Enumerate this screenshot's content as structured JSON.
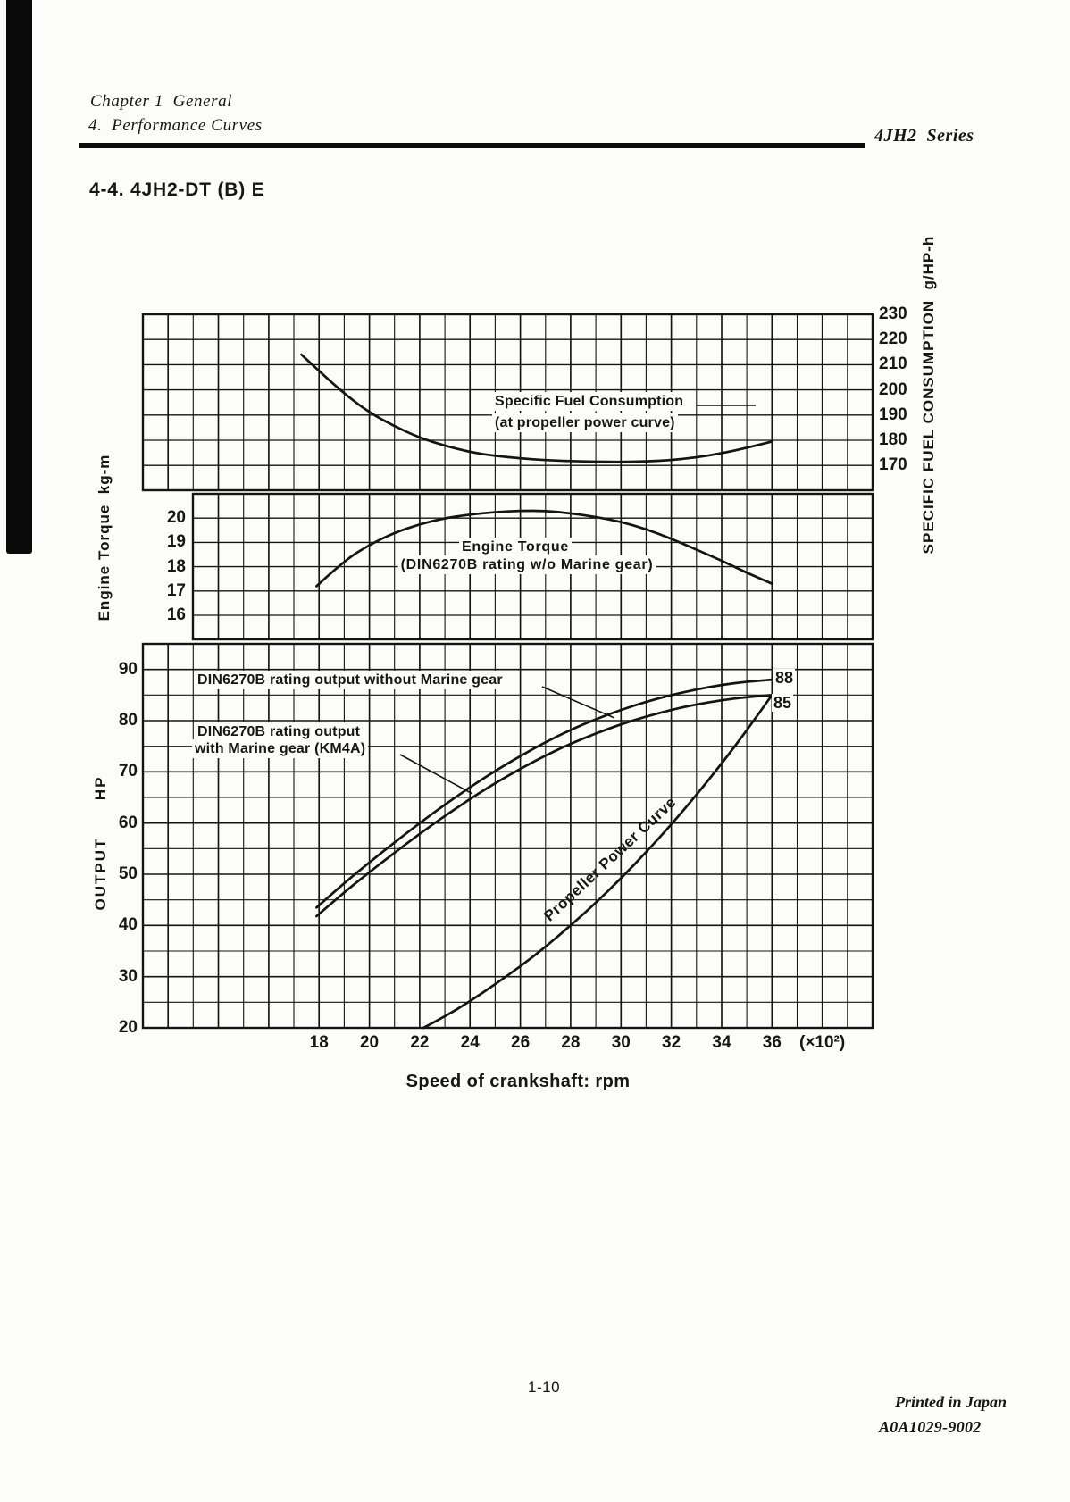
{
  "header": {
    "chapter_line1": "Chapter 1  General",
    "chapter_line2": "4.  Performance Curves",
    "series_label": "4JH2  Series",
    "section_title": "4-4. 4JH2-DT (B) E"
  },
  "footer": {
    "page_number": "1-10",
    "printed": "Printed in Japan",
    "code": "A0A1029-9002"
  },
  "chart_data": {
    "type": "line",
    "title": "4JH2-DT (B) E performance curves",
    "grid": "on",
    "x_axis": {
      "title": "Speed of crankshaft: rpm",
      "ticks": [
        18,
        20,
        22,
        24,
        26,
        28,
        30,
        32,
        34,
        36
      ],
      "multiplier": "(×10²)",
      "xlim": [
        11,
        40
      ],
      "unit": "×100 rpm"
    },
    "panels": [
      {
        "id": "sfc",
        "axis_title": "SPECIFIC FUEL CONSUMPTION  g/HP-h",
        "axis_side": "right",
        "ticks": [
          230,
          220,
          210,
          200,
          190,
          180,
          170
        ],
        "ylim": [
          160,
          230
        ],
        "labels": {
          "line1": "Specific Fuel Consumption",
          "line2": "(at propeller power curve)"
        },
        "series": [
          {
            "name": "Specific Fuel Consumption (at propeller power curve)",
            "points": [
              [
                17.3,
                214
              ],
              [
                18,
                207.5
              ],
              [
                19,
                198.5
              ],
              [
                20,
                191
              ],
              [
                21,
                185.5
              ],
              [
                22,
                181
              ],
              [
                23,
                177.8
              ],
              [
                24,
                175.3
              ],
              [
                25,
                173.8
              ],
              [
                26,
                172.8
              ],
              [
                27,
                172.1
              ],
              [
                28,
                171.7
              ],
              [
                29,
                171.5
              ],
              [
                30,
                171.4
              ],
              [
                31,
                171.6
              ],
              [
                32,
                172.1
              ],
              [
                33,
                173.2
              ],
              [
                34,
                174.8
              ],
              [
                35,
                177
              ],
              [
                36,
                179.5
              ]
            ]
          }
        ]
      },
      {
        "id": "torque",
        "axis_title": "Engine Torque  kg-m",
        "axis_side": "left",
        "ticks": [
          20,
          19,
          18,
          17,
          16
        ],
        "ylim": [
          15,
          21
        ],
        "labels": {
          "line1": "Engine Torque",
          "line2": "(DIN6270B rating w/o Marine gear)"
        },
        "series": [
          {
            "name": "Engine Torque (DIN6270B rating w/o Marine gear)",
            "points": [
              [
                17.9,
                17.2
              ],
              [
                19,
                18.25
              ],
              [
                20,
                18.9
              ],
              [
                21,
                19.4
              ],
              [
                22,
                19.75
              ],
              [
                23,
                20.0
              ],
              [
                24,
                20.15
              ],
              [
                25,
                20.25
              ],
              [
                26,
                20.3
              ],
              [
                27,
                20.3
              ],
              [
                28,
                20.2
              ],
              [
                29,
                20.05
              ],
              [
                30,
                19.85
              ],
              [
                31,
                19.55
              ],
              [
                32,
                19.15
              ],
              [
                33,
                18.7
              ],
              [
                34,
                18.25
              ],
              [
                35,
                17.75
              ],
              [
                36,
                17.3
              ]
            ]
          }
        ]
      },
      {
        "id": "output",
        "axis_title": "OUTPUT  HP",
        "axis_side": "left",
        "ticks": [
          90,
          80,
          70,
          60,
          50,
          40,
          30,
          20
        ],
        "ylim": [
          20,
          95
        ],
        "labels": {
          "without": "DIN6270B rating output without Marine gear",
          "with_line1": "DIN6270B rating output",
          "with_line2": "with Marine gear (KM4A)",
          "propeller": "Propeller Power Curve"
        },
        "series": [
          {
            "name": "DIN6270B rating output without Marine gear",
            "end_label": "88",
            "points": [
              [
                17.9,
                43.5
              ],
              [
                19,
                48.3
              ],
              [
                20,
                52.3
              ],
              [
                21,
                56.2
              ],
              [
                22,
                60
              ],
              [
                23,
                63.6
              ],
              [
                24,
                67
              ],
              [
                25,
                70.2
              ],
              [
                26,
                73.1
              ],
              [
                27,
                75.8
              ],
              [
                28,
                78.2
              ],
              [
                29,
                80.3
              ],
              [
                30,
                82.1
              ],
              [
                31,
                83.7
              ],
              [
                32,
                85
              ],
              [
                33,
                86.1
              ],
              [
                34,
                87
              ],
              [
                35,
                87.6
              ],
              [
                36,
                88
              ]
            ]
          },
          {
            "name": "DIN6270B rating output with Marine gear (KM4A)",
            "end_label": "85",
            "points": [
              [
                17.9,
                41.8
              ],
              [
                19,
                46.5
              ],
              [
                20,
                50.4
              ],
              [
                21,
                54.2
              ],
              [
                22,
                57.9
              ],
              [
                23,
                61.4
              ],
              [
                24,
                64.7
              ],
              [
                25,
                67.8
              ],
              [
                26,
                70.6
              ],
              [
                27,
                73.2
              ],
              [
                28,
                75.5
              ],
              [
                29,
                77.5
              ],
              [
                30,
                79.3
              ],
              [
                31,
                80.8
              ],
              [
                32,
                82.1
              ],
              [
                33,
                83.2
              ],
              [
                34,
                84
              ],
              [
                35,
                84.6
              ],
              [
                36,
                85
              ]
            ]
          },
          {
            "name": "Propeller Power Curve",
            "points": [
              [
                22.15,
                20
              ],
              [
                23,
                22.2
              ],
              [
                24,
                25.2
              ],
              [
                25,
                28.5
              ],
              [
                26,
                32
              ],
              [
                27,
                35.8
              ],
              [
                28,
                40
              ],
              [
                29,
                44.4
              ],
              [
                30,
                49.2
              ],
              [
                31,
                54.3
              ],
              [
                32,
                59.7
              ],
              [
                33,
                65.5
              ],
              [
                34,
                71.6
              ],
              [
                35,
                78.1
              ],
              [
                36,
                85
              ]
            ]
          }
        ]
      }
    ]
  }
}
